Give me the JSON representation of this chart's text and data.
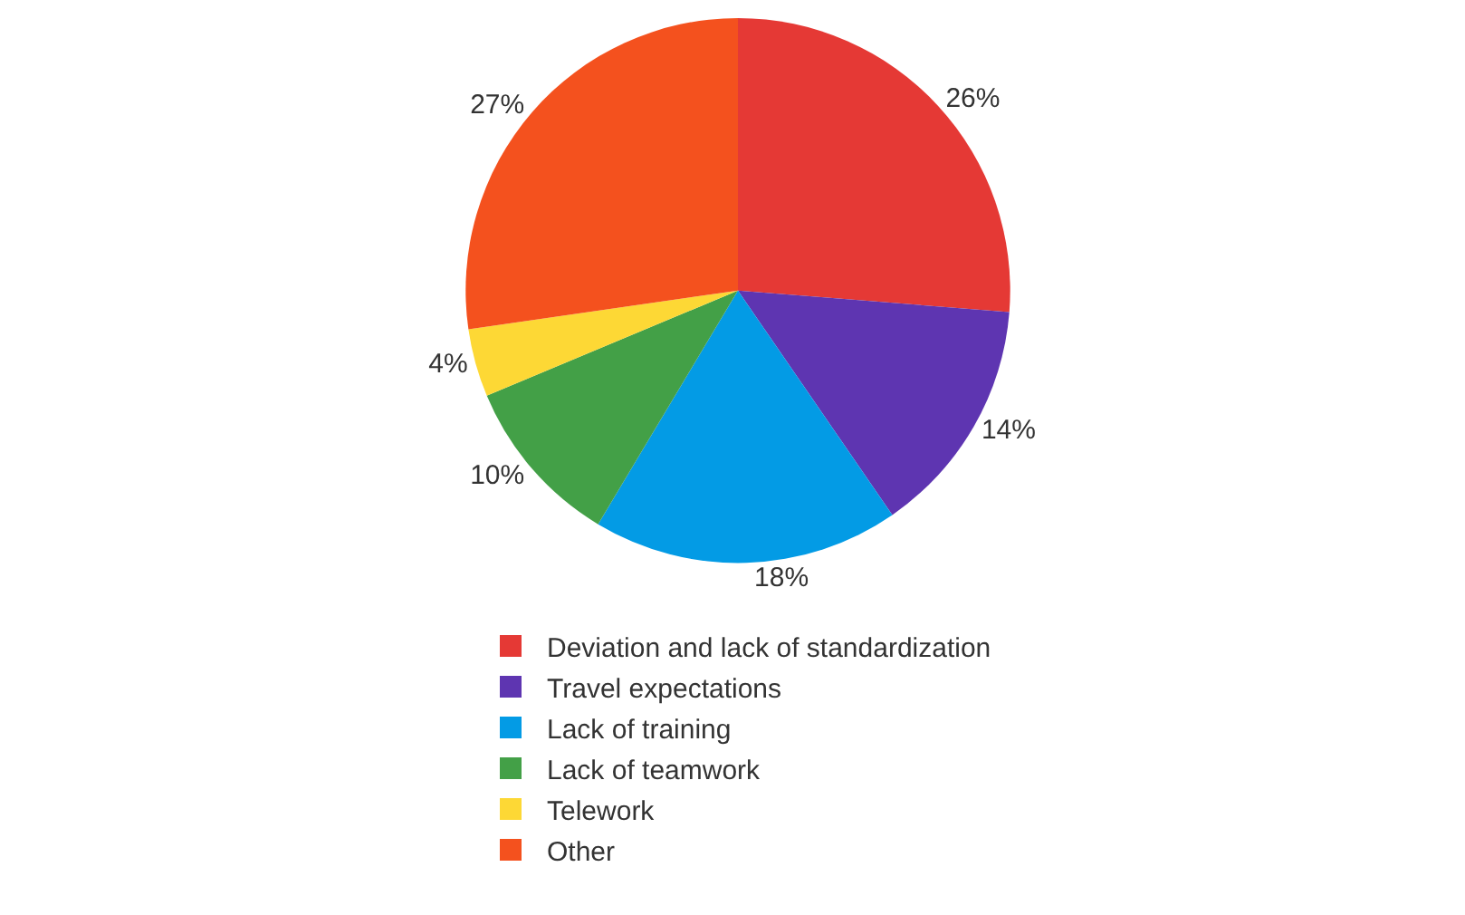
{
  "chart_data": {
    "type": "pie",
    "categories": [
      "Deviation and lack of standardization",
      "Travel expectations",
      "Lack of training",
      "Lack of teamwork",
      "Telework",
      "Other"
    ],
    "values": [
      26,
      14,
      18,
      10,
      4,
      27
    ],
    "value_labels": [
      "26%",
      "14%",
      "18%",
      "10%",
      "4%",
      "27%"
    ],
    "colors": [
      "#e53935",
      "#5e35b1",
      "#039be5",
      "#43a047",
      "#fdd835",
      "#f4511e"
    ],
    "legend": "bottom"
  }
}
